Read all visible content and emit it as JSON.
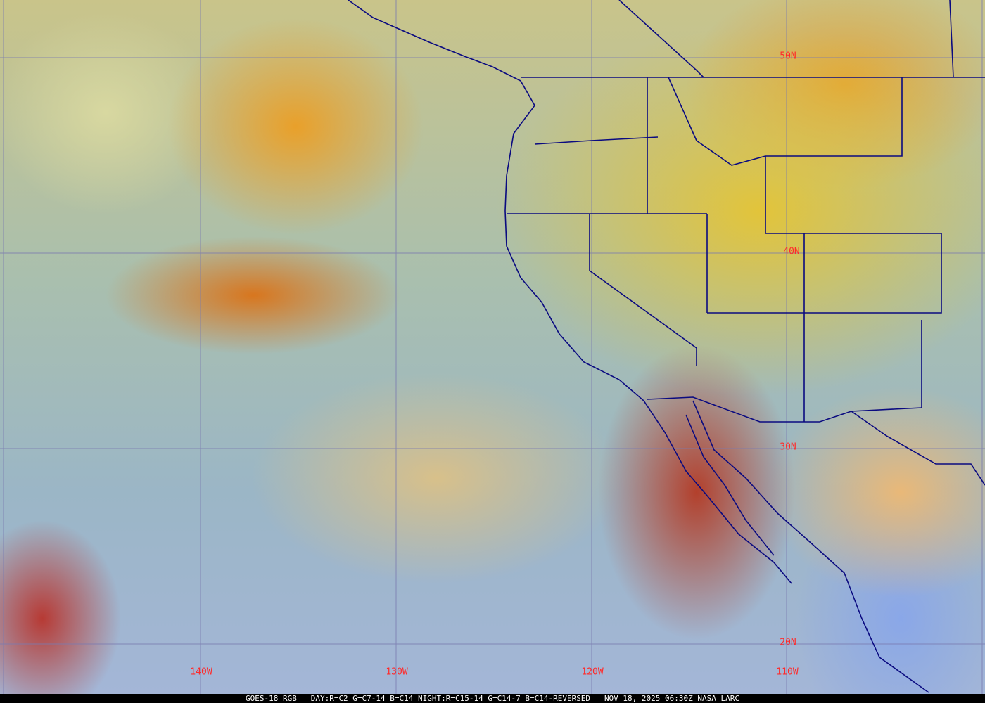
{
  "colors": {
    "grid": "#7a7ab0",
    "boundaries": "#0a0a80",
    "labels": "#ff2a2a",
    "caption_bg": "#000000",
    "caption_text": "#ffffff"
  },
  "lat_labels": [
    "50N",
    "40N",
    "30N",
    "20N"
  ],
  "lon_labels": [
    "140W",
    "130W",
    "120W",
    "110W"
  ],
  "caption": {
    "product": "GOES-18 RGB",
    "recipe": "DAY:R=C2 G=C7-14 B=C14 NIGHT:R=C15-14 G=C14-7 B=C14-REVERSED",
    "datetime": "NOV 18, 2025 06:30Z",
    "source": "NASA LARC"
  }
}
